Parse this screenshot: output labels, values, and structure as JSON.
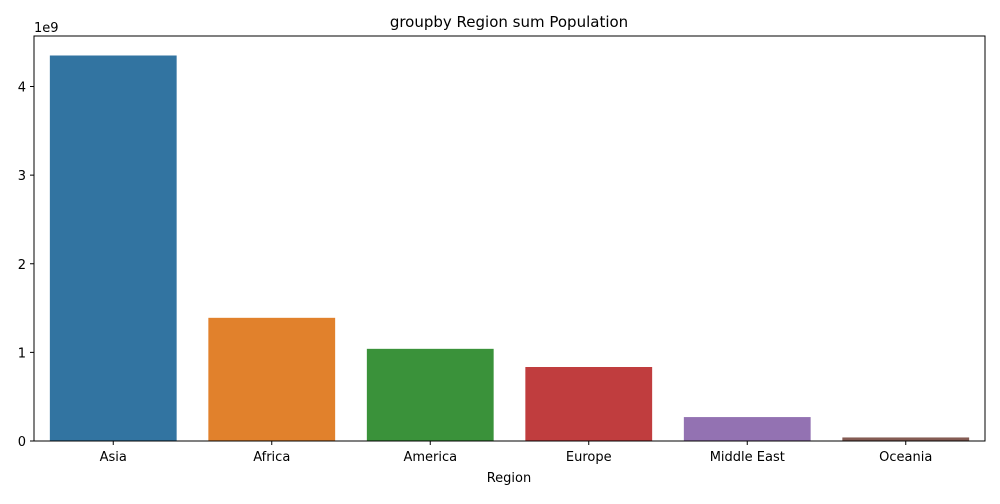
{
  "chart_data": {
    "type": "bar",
    "title": "groupby Region sum Population",
    "xlabel": "Region",
    "ylabel": "",
    "y_offset_label": "1e9",
    "categories": [
      "Asia",
      "Africa",
      "America",
      "Europe",
      "Middle East",
      "Oceania"
    ],
    "values": [
      4.35,
      1.39,
      1.04,
      0.835,
      0.27,
      0.04
    ],
    "value_scale": 1000000000,
    "ylim": [
      0,
      4.57
    ],
    "yticks": [
      0,
      1,
      2,
      3,
      4
    ],
    "ytick_labels": [
      "0",
      "1",
      "2",
      "3",
      "4"
    ],
    "colors": [
      "#3274a1",
      "#e1812c",
      "#3a923a",
      "#c03d3e",
      "#9372b2",
      "#845b53"
    ],
    "grid": false,
    "legend": "none"
  }
}
